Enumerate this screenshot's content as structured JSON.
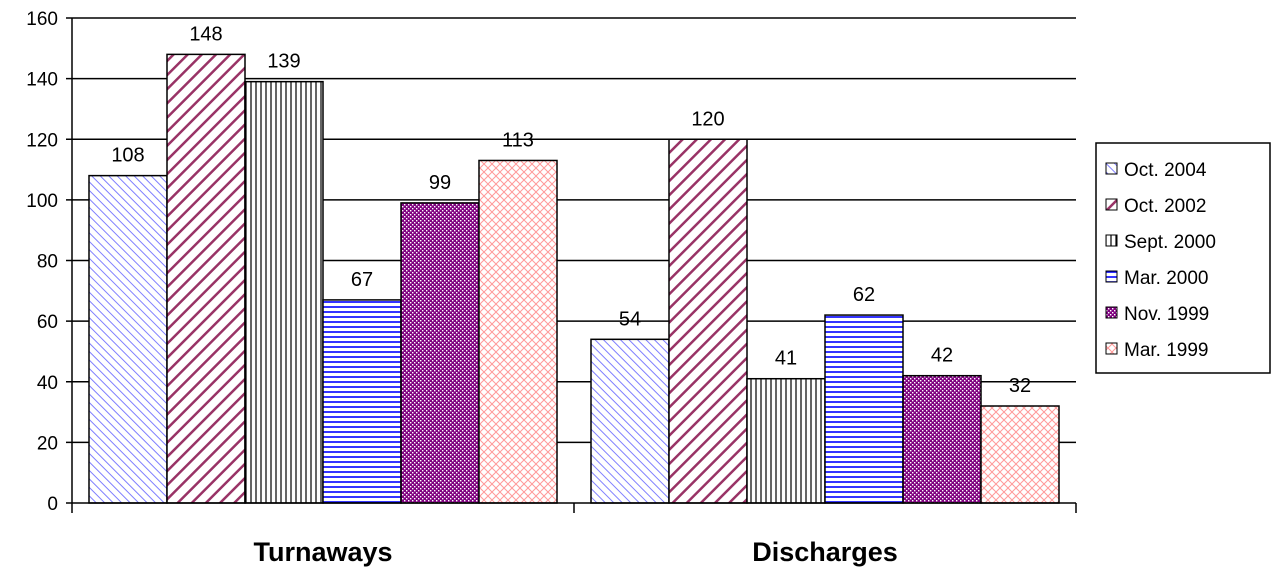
{
  "chart_data": {
    "type": "bar",
    "categories": [
      "Turnaways",
      "Discharges"
    ],
    "series": [
      {
        "name": "Oct. 2004",
        "values": [
          108,
          54
        ],
        "pattern": "diag-blue"
      },
      {
        "name": "Oct. 2002",
        "values": [
          148,
          120
        ],
        "pattern": "diag-maroon"
      },
      {
        "name": "Sept. 2000",
        "values": [
          139,
          41
        ],
        "pattern": "vert-black"
      },
      {
        "name": "Mar. 2000",
        "values": [
          67,
          62
        ],
        "pattern": "horiz-blue"
      },
      {
        "name": "Nov. 1999",
        "values": [
          99,
          42
        ],
        "pattern": "dots-purple"
      },
      {
        "name": "Mar. 1999",
        "values": [
          113,
          32
        ],
        "pattern": "cross-pink"
      }
    ],
    "ylim": [
      0,
      160
    ],
    "yticks": [
      0,
      20,
      40,
      60,
      80,
      100,
      120,
      140,
      160
    ],
    "grid": true,
    "legend_position": "right",
    "colors": {
      "blue": "#7f7fff",
      "maroon": "#993366",
      "black": "#000000",
      "purple": "#800080",
      "pink": "#ff9999"
    }
  }
}
